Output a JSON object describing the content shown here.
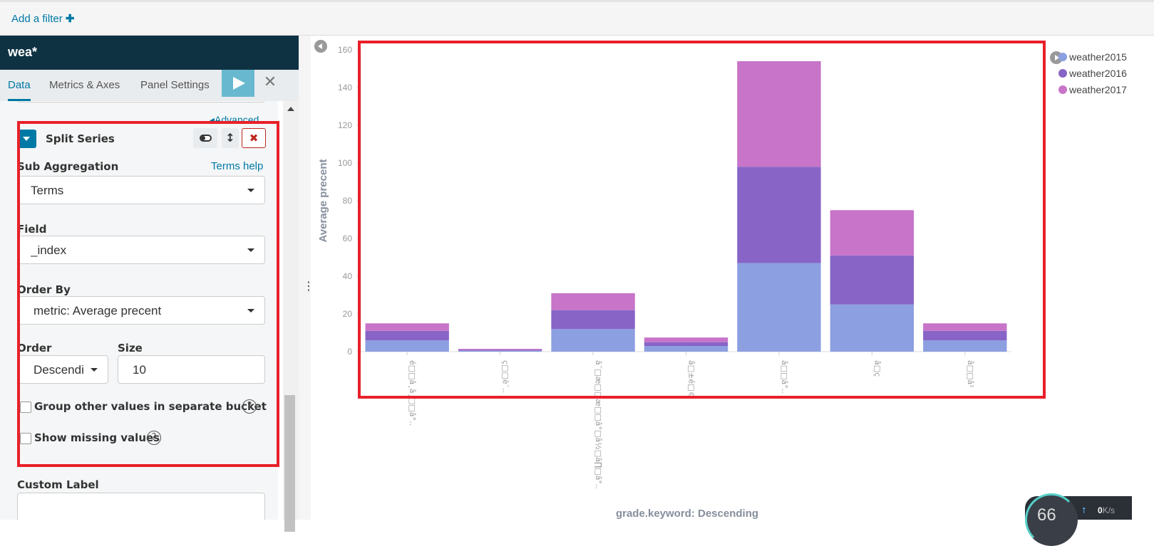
{
  "filter_bar": {
    "add_filter_label": "Add a filter",
    "plus_icon": "plus-icon"
  },
  "sidebar": {
    "index_pattern": "wea*",
    "tabs": [
      {
        "label": "Data",
        "active": true
      },
      {
        "label": "Metrics & Axes",
        "active": false
      },
      {
        "label": "Panel Settings",
        "active": false
      }
    ],
    "apply_icon": "play-icon",
    "discard_icon": "close-icon",
    "advanced_link": "Advanced",
    "split_series": {
      "title": "Split Series",
      "sub_aggregation_label": "Sub Aggregation",
      "terms_help": "Terms help",
      "sub_aggregation_value": "Terms",
      "field_label": "Field",
      "field_value": "_index",
      "order_by_label": "Order By",
      "order_by_value": "metric: Average precent",
      "order_label": "Order",
      "order_value": "Descending",
      "size_label": "Size",
      "size_value": "10",
      "group_other_label": "Group other values in separate bucket",
      "group_other_checked": false,
      "show_missing_label": "Show missing values",
      "show_missing_checked": false,
      "help_icon_text": "?"
    },
    "custom_label": "Custom Label"
  },
  "chart": {
    "legend": [
      {
        "name": "weather2015",
        "color": "#8c9fe0"
      },
      {
        "name": "weather2016",
        "color": "#8764c6"
      },
      {
        "name": "weather2017",
        "color": "#c774c9"
      }
    ]
  },
  "chart_data": {
    "type": "bar",
    "stacked": true,
    "ylabel": "Average precent",
    "xlabel": "grade.keyword: Descending",
    "ylim": [
      0,
      160
    ],
    "yticks": [
      0,
      20,
      40,
      60,
      80,
      100,
      120,
      140,
      160
    ],
    "categories": [
      "é□□â¸â¸□□â°..",
      "ç□□è¨..",
      "â¯□æ□□æ□□â°□â½□â∏□â°..",
      "â□±é□©",
      "â□□â°..",
      "â□ç",
      "â□□â¹"
    ],
    "series": [
      {
        "name": "weather2015",
        "values": [
          6,
          0.5,
          12,
          3,
          47,
          25,
          6
        ]
      },
      {
        "name": "weather2016",
        "values": [
          5,
          0.5,
          10,
          2,
          51,
          26,
          5
        ]
      },
      {
        "name": "weather2017",
        "values": [
          4,
          0.5,
          9,
          2.5,
          56,
          24,
          4
        ]
      }
    ],
    "legend_position": "top-right",
    "grid": false
  },
  "status_widget": {
    "gauge_value": "66",
    "speed_value": "0",
    "speed_unit": "K/s"
  }
}
